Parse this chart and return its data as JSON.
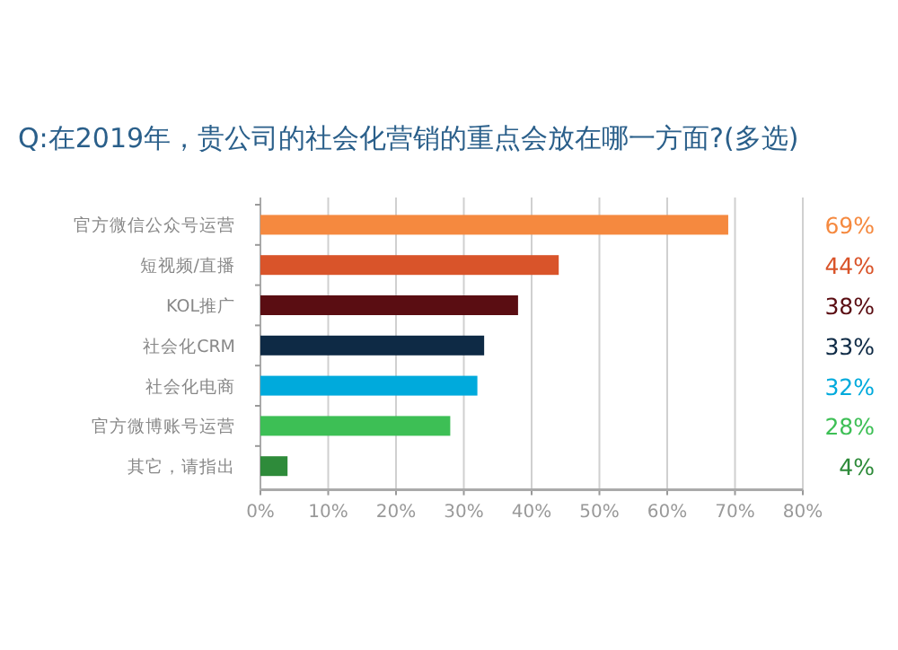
{
  "chart_data": {
    "type": "bar",
    "orientation": "horizontal",
    "title": "Q:在2019年，贵公司的社会化营销的重点会放在哪一方面?(多选)",
    "categories": [
      "官方微信公众号运营",
      "短视频/直播",
      "KOL推广",
      "社会化CRM",
      "社会化电商",
      "官方微博账号运营",
      "其它，请指出"
    ],
    "values": [
      69,
      44,
      38,
      33,
      32,
      28,
      4
    ],
    "colors": [
      "#f5893f",
      "#d9542a",
      "#5a0d12",
      "#0e2a45",
      "#00aadc",
      "#3dbf55",
      "#2e8b3a"
    ],
    "value_labels": [
      "69%",
      "44%",
      "38%",
      "33%",
      "32%",
      "28%",
      "4%"
    ],
    "xlim": [
      0,
      80
    ],
    "xticks": [
      {
        "value": 0,
        "label": "0%"
      },
      {
        "value": 10,
        "label": "10%"
      },
      {
        "value": 20,
        "label": "20%"
      },
      {
        "value": 30,
        "label": "30%"
      },
      {
        "value": 40,
        "label": "40%"
      },
      {
        "value": 50,
        "label": "50%"
      },
      {
        "value": 60,
        "label": "60%"
      },
      {
        "value": 70,
        "label": "70%"
      },
      {
        "value": 80,
        "label": "80%"
      }
    ],
    "grid": "x"
  }
}
